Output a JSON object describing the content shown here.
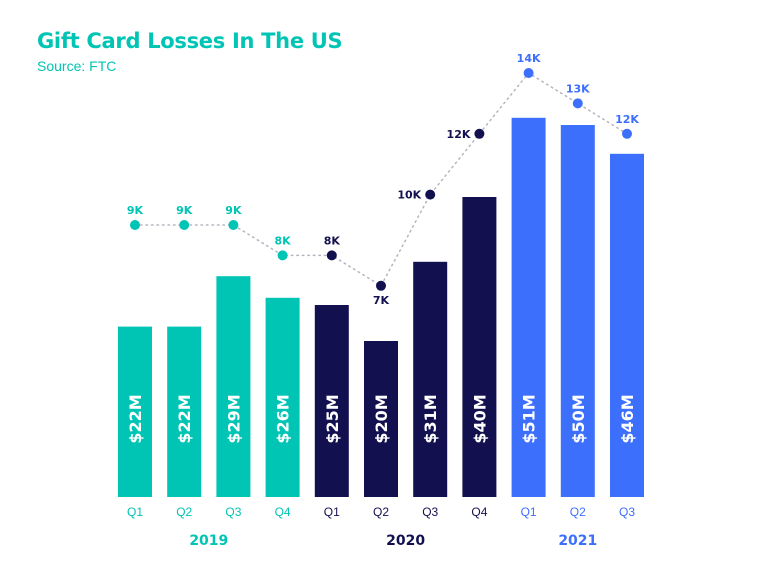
{
  "chart_data": {
    "type": "bar",
    "title": "Gift Card Losses In The US",
    "subtitle": "Source: FTC",
    "categories": [
      "Q1",
      "Q2",
      "Q3",
      "Q4",
      "Q1",
      "Q2",
      "Q3",
      "Q4",
      "Q1",
      "Q2",
      "Q3"
    ],
    "years": [
      {
        "label": "2019",
        "start": 0,
        "end": 3,
        "color": "#00c4b4"
      },
      {
        "label": "2020",
        "start": 4,
        "end": 7,
        "color": "#13104f"
      },
      {
        "label": "2021",
        "start": 8,
        "end": 10,
        "color": "#3d6ffd"
      }
    ],
    "series": [
      {
        "type": "bar",
        "unit": "$M",
        "values": [
          22,
          22,
          29,
          26,
          25,
          20,
          31,
          40,
          51,
          50,
          46
        ],
        "labels": [
          "$22M",
          "$22M",
          "$29M",
          "$26M",
          "$25M",
          "$20M",
          "$31M",
          "$40M",
          "$51M",
          "$50M",
          "$46M"
        ]
      },
      {
        "type": "line",
        "unit": "K",
        "values": [
          9,
          9,
          9,
          8,
          8,
          7,
          10,
          12,
          14,
          13,
          12
        ],
        "labels": [
          "9K",
          "9K",
          "9K",
          "8K",
          "8K",
          "7K",
          "10K",
          "12K",
          "14K",
          "13K",
          "12K"
        ]
      }
    ],
    "grid": false,
    "legend": "none"
  }
}
